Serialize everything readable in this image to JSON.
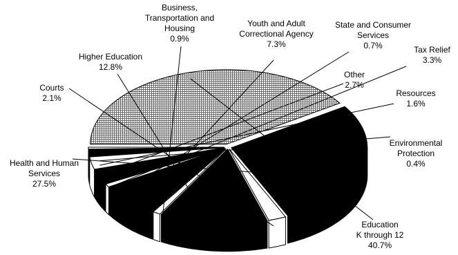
{
  "chart_data": {
    "type": "pie",
    "style": "3d-exploded",
    "title": "",
    "slices": [
      {
        "label": "Education K through 12",
        "value": 40.7,
        "display": "40.7%",
        "fill": "grid",
        "lines": [
          "Education",
          "K through 12"
        ]
      },
      {
        "label": "Health and Human Services",
        "value": 27.5,
        "display": "27.5%",
        "fill": "black",
        "lines": [
          "Health and Human",
          "Services"
        ]
      },
      {
        "label": "Courts",
        "value": 2.1,
        "display": "2.1%",
        "fill": "white",
        "lines": [
          "Courts"
        ]
      },
      {
        "label": "Higher Education",
        "value": 12.8,
        "display": "12.8%",
        "fill": "black",
        "lines": [
          "Higher Education"
        ]
      },
      {
        "label": "Business, Transportation and Housing",
        "value": 0.9,
        "display": "0.9%",
        "fill": "white",
        "lines": [
          "Business,",
          "Transportation and",
          "Housing"
        ]
      },
      {
        "label": "Youth and Adult Correctional Agency",
        "value": 7.3,
        "display": "7.3%",
        "fill": "black",
        "lines": [
          "Youth and Adult",
          "Correctional Agency"
        ]
      },
      {
        "label": "State and Consumer Services",
        "value": 0.7,
        "display": "0.7%",
        "fill": "white",
        "lines": [
          "State and Consumer",
          "Services"
        ]
      },
      {
        "label": "Tax Relief",
        "value": 3.3,
        "display": "3.3%",
        "fill": "black",
        "lines": [
          "Tax Relief"
        ]
      },
      {
        "label": "Other",
        "value": 2.7,
        "display": "2.7%",
        "fill": "white",
        "lines": [
          "Other"
        ]
      },
      {
        "label": "Resources",
        "value": 1.6,
        "display": "1.6%",
        "fill": "black",
        "lines": [
          "Resources"
        ]
      },
      {
        "label": "Environmental Protection",
        "value": 0.4,
        "display": "0.4%",
        "fill": "white",
        "lines": [
          "Environmental",
          "Protection"
        ]
      }
    ]
  }
}
